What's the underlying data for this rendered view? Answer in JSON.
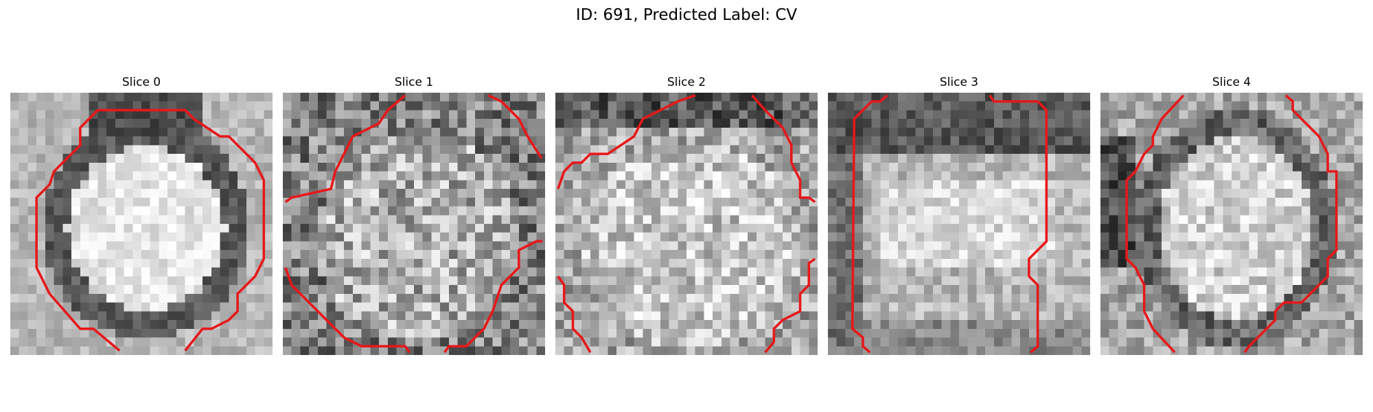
{
  "figure": {
    "title": "ID: 691, Predicted Label: CV"
  },
  "panels": [
    {
      "title": "Slice 0",
      "contour_color": "#e8171a",
      "contour_description": "roughly octagonal ring closely enclosing bright central blob",
      "image_description": "grayscale voxel grid: bright round center, dark ring, light corners"
    },
    {
      "title": "Slice 1",
      "contour_color": "#e8171a",
      "contour_description": "fragmented contour segments at upper-left, upper-right, lower-left and lower-right",
      "image_description": "noisy grayscale voxel grid with moderately bright center"
    },
    {
      "title": "Slice 2",
      "contour_color": "#e8171a",
      "contour_description": "fragmented contour segments along the edges",
      "image_description": "noisy grayscale voxel grid, darker top rows, bright lower center"
    },
    {
      "title": "Slice 3",
      "contour_color": "#e8171a",
      "contour_description": "tall rectangular contour spanning left and right sides, open bottom",
      "image_description": "grayscale voxel grid with bright horizontal band and darker top/bottom"
    },
    {
      "title": "Slice 4",
      "contour_color": "#e8171a",
      "contour_description": "elongated vertical oval contour around bright center",
      "image_description": "grayscale voxel grid with bright oval center and dark left border"
    }
  ]
}
